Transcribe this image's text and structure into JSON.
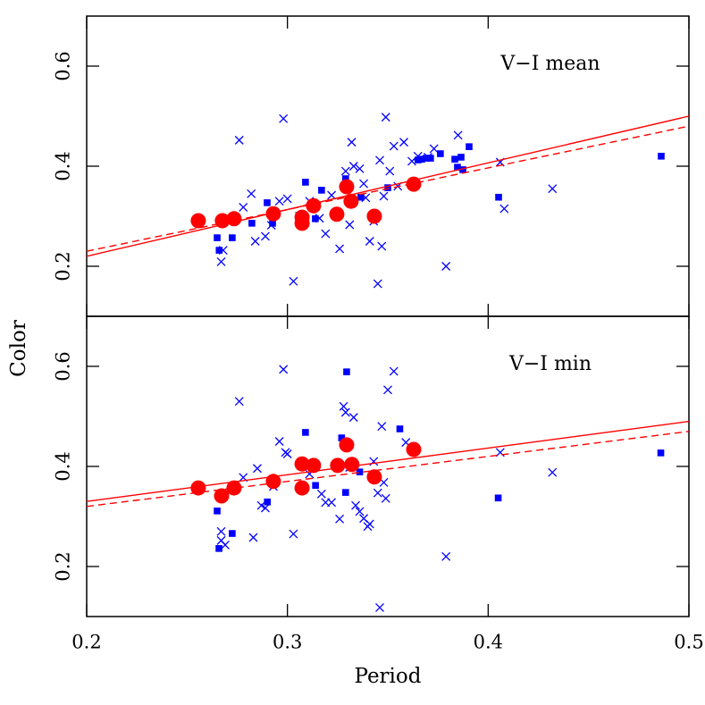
{
  "chart_data": [
    {
      "type": "scatter",
      "annotation": "V−I mean",
      "xlim": [
        0.2,
        0.5
      ],
      "xticks": [
        0.2,
        0.3,
        0.4,
        0.5
      ],
      "show_xtick_labels": false,
      "ylim": [
        0.1,
        0.7
      ],
      "yticks": [
        0.2,
        0.4,
        0.6
      ],
      "series": [
        {
          "marker": "x",
          "color": "#0000ff",
          "x": [
            0.267,
            0.268,
            0.276,
            0.278,
            0.282,
            0.284,
            0.289,
            0.292,
            0.296,
            0.298,
            0.3,
            0.303,
            0.306,
            0.311,
            0.316,
            0.319,
            0.322,
            0.326,
            0.329,
            0.331,
            0.332,
            0.333,
            0.336,
            0.338,
            0.339,
            0.341,
            0.343,
            0.345,
            0.346,
            0.347,
            0.348,
            0.349,
            0.351,
            0.353,
            0.355,
            0.358,
            0.362,
            0.365,
            0.37,
            0.373,
            0.379,
            0.385,
            0.406,
            0.408,
            0.432
          ],
          "values": [
            0.209,
            0.232,
            0.452,
            0.318,
            0.345,
            0.25,
            0.26,
            0.282,
            0.33,
            0.495,
            0.335,
            0.17,
            0.3,
            0.33,
            0.296,
            0.265,
            0.342,
            0.235,
            0.39,
            0.283,
            0.448,
            0.4,
            0.395,
            0.365,
            0.337,
            0.25,
            0.29,
            0.165,
            0.412,
            0.24,
            0.34,
            0.498,
            0.39,
            0.44,
            0.36,
            0.448,
            0.41,
            0.42,
            0.418,
            0.435,
            0.2,
            0.462,
            0.408,
            0.315,
            0.355
          ]
        },
        {
          "marker": "square",
          "color": "#0000ff",
          "x": [
            0.265,
            0.266,
            0.2725,
            0.2823,
            0.2899,
            0.2926,
            0.309,
            0.3139,
            0.317,
            0.329,
            0.3295,
            0.3366,
            0.35,
            0.3651,
            0.3669,
            0.3691,
            0.3713,
            0.3762,
            0.3834,
            0.3847,
            0.3865,
            0.3874,
            0.3905,
            0.4052,
            0.4862
          ],
          "values": [
            0.257,
            0.232,
            0.257,
            0.286,
            0.327,
            0.286,
            0.368,
            0.295,
            0.352,
            0.375,
            0.366,
            0.338,
            0.357,
            0.4125,
            0.414,
            0.416,
            0.416,
            0.425,
            0.414,
            0.398,
            0.418,
            0.393,
            0.439,
            0.338,
            0.42
          ]
        },
        {
          "marker": "circle",
          "color": "#ff0000",
          "x": [
            0.2556,
            0.2676,
            0.2734,
            0.293,
            0.3073,
            0.3073,
            0.313,
            0.3246,
            0.3295,
            0.3317,
            0.3433,
            0.3629
          ],
          "values": [
            0.291,
            0.291,
            0.295,
            0.305,
            0.298,
            0.286,
            0.321,
            0.304,
            0.359,
            0.33,
            0.3,
            0.364
          ]
        },
        {
          "marker": "line",
          "style": "solid",
          "color": "#ff0000",
          "x": [
            0.2,
            0.5
          ],
          "values": [
            0.22,
            0.5
          ]
        },
        {
          "marker": "line",
          "style": "dashed",
          "color": "#ff0000",
          "x": [
            0.2,
            0.5
          ],
          "values": [
            0.23,
            0.48
          ]
        }
      ]
    },
    {
      "type": "scatter",
      "annotation": "V−I min",
      "xlabel": "Period",
      "ylabel": "Color",
      "xlim": [
        0.2,
        0.5
      ],
      "xticks": [
        0.2,
        0.3,
        0.4,
        0.5
      ],
      "show_xtick_labels": true,
      "ylim": [
        0.1,
        0.7
      ],
      "yticks": [
        0.2,
        0.4,
        0.6
      ],
      "series": [
        {
          "marker": "x",
          "color": "#0000ff",
          "x": [
            0.267,
            0.267,
            0.269,
            0.276,
            0.278,
            0.283,
            0.285,
            0.287,
            0.289,
            0.293,
            0.296,
            0.298,
            0.299,
            0.3,
            0.303,
            0.311,
            0.317,
            0.319,
            0.322,
            0.326,
            0.328,
            0.329,
            0.331,
            0.333,
            0.334,
            0.336,
            0.338,
            0.34,
            0.341,
            0.343,
            0.345,
            0.346,
            0.347,
            0.348,
            0.349,
            0.35,
            0.353,
            0.359,
            0.379,
            0.406,
            0.432
          ],
          "values": [
            0.27,
            0.252,
            0.243,
            0.53,
            0.378,
            0.258,
            0.396,
            0.322,
            0.317,
            0.36,
            0.45,
            0.594,
            0.428,
            0.425,
            0.265,
            0.385,
            0.345,
            0.328,
            0.328,
            0.295,
            0.52,
            0.508,
            0.398,
            0.498,
            0.322,
            0.31,
            0.296,
            0.28,
            0.285,
            0.41,
            0.347,
            0.118,
            0.48,
            0.368,
            0.336,
            0.553,
            0.59,
            0.448,
            0.22,
            0.428,
            0.388
          ]
        },
        {
          "marker": "square",
          "color": "#0000ff",
          "x": [
            0.265,
            0.2659,
            0.2725,
            0.29,
            0.309,
            0.314,
            0.327,
            0.329,
            0.3295,
            0.336,
            0.356,
            0.405,
            0.486
          ],
          "values": [
            0.311,
            0.236,
            0.266,
            0.329,
            0.468,
            0.362,
            0.457,
            0.348,
            0.589,
            0.389,
            0.475,
            0.337,
            0.427
          ]
        },
        {
          "marker": "circle",
          "color": "#ff0000",
          "x": [
            0.2556,
            0.2672,
            0.2734,
            0.293,
            0.3073,
            0.3073,
            0.313,
            0.325,
            0.3295,
            0.3321,
            0.3433,
            0.3629
          ],
          "values": [
            0.357,
            0.341,
            0.357,
            0.37,
            0.357,
            0.405,
            0.402,
            0.402,
            0.443,
            0.404,
            0.379,
            0.434
          ]
        },
        {
          "marker": "line",
          "style": "solid",
          "color": "#ff0000",
          "x": [
            0.2,
            0.5
          ],
          "values": [
            0.33,
            0.49
          ]
        },
        {
          "marker": "line",
          "style": "dashed",
          "color": "#ff0000",
          "x": [
            0.2,
            0.5
          ],
          "values": [
            0.32,
            0.47
          ]
        }
      ]
    }
  ]
}
